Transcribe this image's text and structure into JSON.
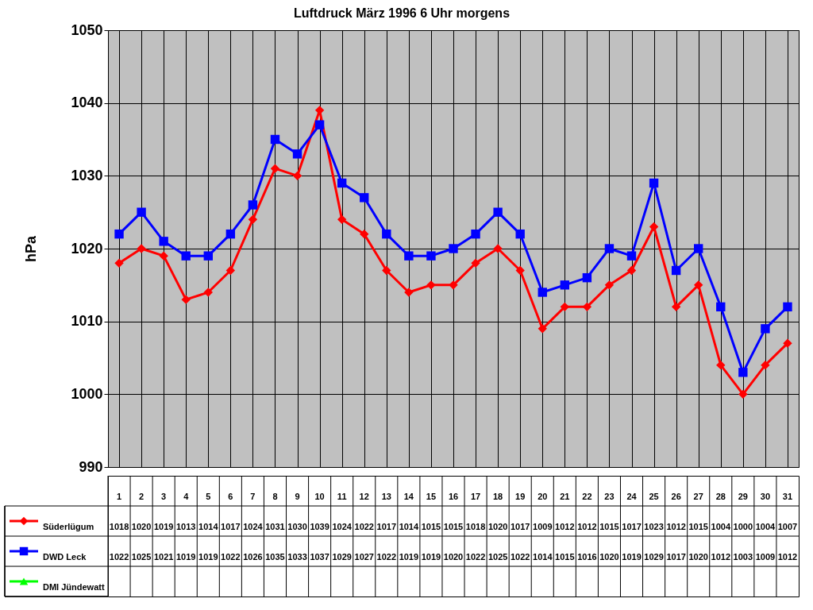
{
  "chart_data": {
    "type": "line",
    "title": "Luftdruck März 1996 6 Uhr morgens",
    "ylabel": "hPa",
    "categories": [
      "1",
      "2",
      "3",
      "4",
      "5",
      "6",
      "7",
      "8",
      "9",
      "10",
      "11",
      "12",
      "13",
      "14",
      "15",
      "16",
      "17",
      "18",
      "19",
      "20",
      "21",
      "22",
      "23",
      "24",
      "25",
      "26",
      "27",
      "28",
      "29",
      "30",
      "31"
    ],
    "series": [
      {
        "name": "Süderlügum",
        "color": "#ff0000",
        "marker": "diamond",
        "values": [
          1018,
          1020,
          1019,
          1013,
          1014,
          1017,
          1024,
          1031,
          1030,
          1039,
          1024,
          1022,
          1017,
          1014,
          1015,
          1015,
          1018,
          1020,
          1017,
          1009,
          1012,
          1012,
          1015,
          1017,
          1023,
          1012,
          1015,
          1004,
          1000,
          1004,
          1007
        ]
      },
      {
        "name": "DWD Leck",
        "color": "#0000ff",
        "marker": "square",
        "values": [
          1022,
          1025,
          1021,
          1019,
          1019,
          1022,
          1026,
          1035,
          1033,
          1037,
          1029,
          1027,
          1022,
          1019,
          1019,
          1020,
          1022,
          1025,
          1022,
          1014,
          1015,
          1016,
          1020,
          1019,
          1029,
          1017,
          1020,
          1012,
          1003,
          1009,
          1012
        ]
      },
      {
        "name": "DMI Jündewatt",
        "color": "#00ff00",
        "marker": "triangle",
        "values": [
          null,
          null,
          null,
          null,
          null,
          null,
          null,
          null,
          null,
          null,
          null,
          null,
          null,
          null,
          null,
          null,
          null,
          null,
          null,
          null,
          null,
          null,
          null,
          null,
          null,
          null,
          null,
          null,
          null,
          null,
          null
        ]
      }
    ],
    "ylim": [
      990,
      1050
    ],
    "yticks": [
      990,
      1000,
      1010,
      1020,
      1030,
      1040,
      1050
    ],
    "grid": true,
    "legend": "bottom left",
    "data_labels": true,
    "line_style": "solid"
  }
}
